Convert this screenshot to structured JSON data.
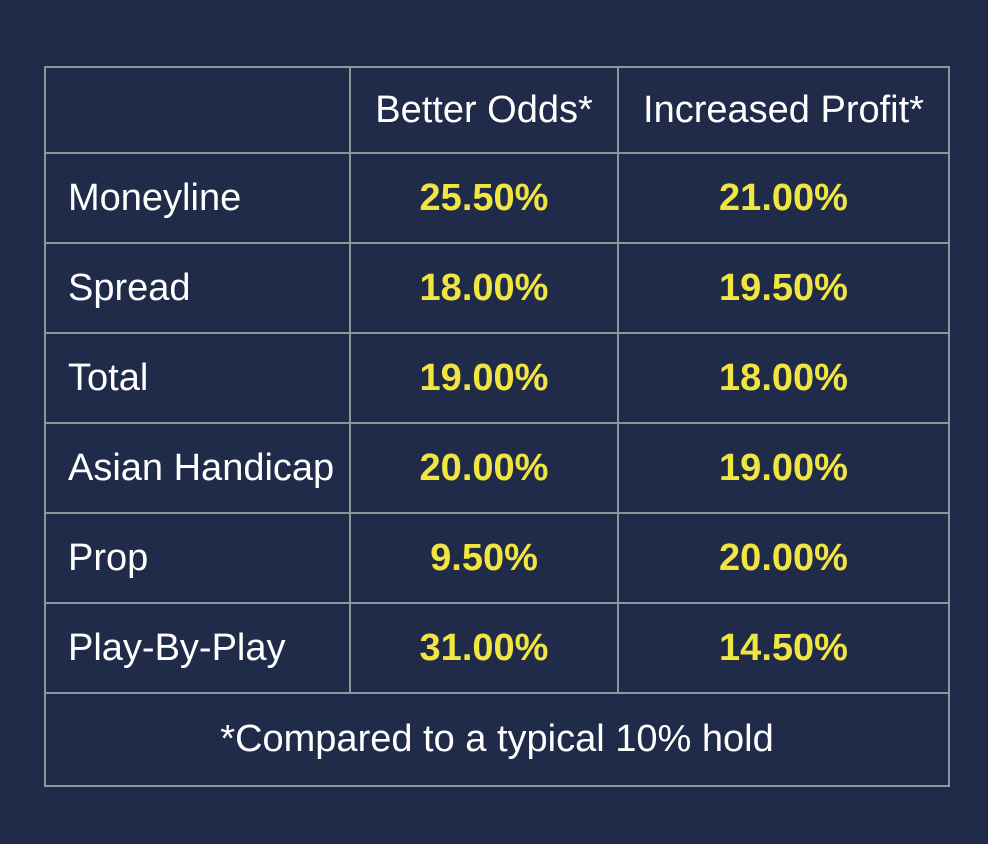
{
  "colors": {
    "background": "#1f2b48",
    "cell_background": "#1f2b48",
    "border": "#8f949d",
    "label_text": "#ffffff",
    "value_text": "#f1e542"
  },
  "table": {
    "headers": [
      "",
      "Better Odds*",
      "Increased Profit*"
    ],
    "rows": [
      {
        "label": "Moneyline",
        "better_odds": "25.50%",
        "increased_profit": "21.00%"
      },
      {
        "label": "Spread",
        "better_odds": "18.00%",
        "increased_profit": "19.50%"
      },
      {
        "label": "Total",
        "better_odds": "19.00%",
        "increased_profit": "18.00%"
      },
      {
        "label": "Asian Handicap",
        "better_odds": "20.00%",
        "increased_profit": "19.00%"
      },
      {
        "label": "Prop",
        "better_odds": "9.50%",
        "increased_profit": "20.00%"
      },
      {
        "label": "Play-By-Play",
        "better_odds": "31.00%",
        "increased_profit": "14.50%"
      }
    ],
    "footnote": "*Compared to a typical 10% hold"
  },
  "chart_data": {
    "type": "table",
    "title": "",
    "columns": [
      "",
      "Better Odds*",
      "Increased Profit*"
    ],
    "categories": [
      "Moneyline",
      "Spread",
      "Total",
      "Asian Handicap",
      "Prop",
      "Play-By-Play"
    ],
    "series": [
      {
        "name": "Better Odds*",
        "values": [
          25.5,
          18.0,
          19.0,
          20.0,
          9.5,
          31.0
        ]
      },
      {
        "name": "Increased Profit*",
        "values": [
          21.0,
          19.5,
          18.0,
          19.0,
          20.0,
          14.5
        ]
      }
    ],
    "units": "percent",
    "footnote": "*Compared to a typical 10% hold",
    "layout_hints": {
      "grid": "full-borders",
      "value_style": "bold-yellow",
      "footnote_row_spans_all_columns": true
    }
  }
}
